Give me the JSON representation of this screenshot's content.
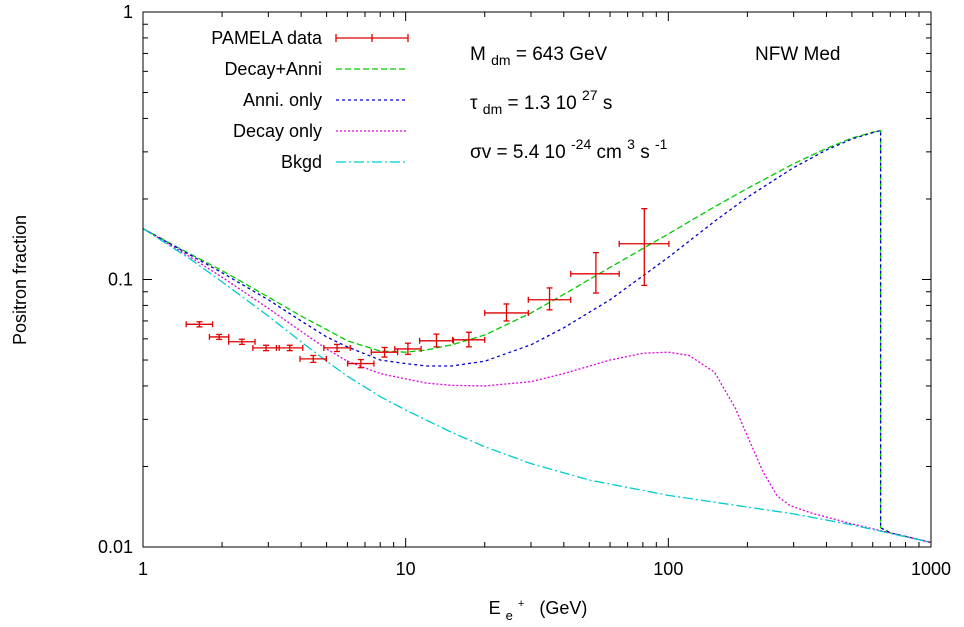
{
  "chart_data": {
    "type": "line",
    "title": "",
    "xlabel": {
      "main": "E",
      "sub": "e",
      "sup": "+",
      "unit": "(GeV)"
    },
    "ylabel": "Positron fraction",
    "xscale": "log",
    "yscale": "log",
    "xlim": [
      1,
      1000
    ],
    "ylim": [
      0.01,
      1
    ],
    "x_ticks": [
      {
        "value": 1,
        "label": "1"
      },
      {
        "value": 10,
        "label": "10"
      },
      {
        "value": 100,
        "label": "100"
      },
      {
        "value": 1000,
        "label": "1000"
      }
    ],
    "y_ticks": [
      {
        "value": 0.01,
        "label": "0.01"
      },
      {
        "value": 0.1,
        "label": "0.1"
      },
      {
        "value": 1,
        "label": "1"
      }
    ],
    "legend_position": "top-left",
    "annotations": {
      "mass": {
        "sym": "M",
        "sub": "dm",
        "val": " = 643 GeV"
      },
      "tau": {
        "sym": "τ",
        "sub": "dm",
        "val": " = 1.3 10",
        "exp": "27",
        "unit": " s"
      },
      "sigmav": {
        "sym": "σv = 5.4 10",
        "exp1": "-24",
        "mid": " cm",
        "exp2": "3",
        "mid2": " s",
        "exp3": "-1"
      },
      "profile": "NFW Med"
    },
    "series": [
      {
        "name": "PAMELA data",
        "kind": "errorbar",
        "color": "#e00000",
        "points": [
          {
            "x": 1.64,
            "xlo": 1.46,
            "xhi": 1.84,
            "y": 0.068,
            "ylo": 0.0665,
            "yhi": 0.0695
          },
          {
            "x": 1.95,
            "xlo": 1.79,
            "xhi": 2.12,
            "y": 0.061,
            "ylo": 0.0597,
            "yhi": 0.0623
          },
          {
            "x": 2.38,
            "xlo": 2.12,
            "xhi": 2.67,
            "y": 0.0585,
            "ylo": 0.0572,
            "yhi": 0.0598
          },
          {
            "x": 2.94,
            "xlo": 2.62,
            "xhi": 3.3,
            "y": 0.0555,
            "ylo": 0.0542,
            "yhi": 0.0568
          },
          {
            "x": 3.62,
            "xlo": 3.22,
            "xhi": 4.06,
            "y": 0.0555,
            "ylo": 0.0542,
            "yhi": 0.0568
          },
          {
            "x": 4.45,
            "xlo": 3.96,
            "xhi": 4.99,
            "y": 0.0505,
            "ylo": 0.049,
            "yhi": 0.052
          },
          {
            "x": 5.48,
            "xlo": 4.88,
            "xhi": 6.15,
            "y": 0.0555,
            "ylo": 0.0538,
            "yhi": 0.0572
          },
          {
            "x": 6.75,
            "xlo": 6.01,
            "xhi": 7.57,
            "y": 0.0485,
            "ylo": 0.0468,
            "yhi": 0.0502
          },
          {
            "x": 8.31,
            "xlo": 7.4,
            "xhi": 9.32,
            "y": 0.0535,
            "ylo": 0.0513,
            "yhi": 0.0557
          },
          {
            "x": 10.2,
            "xlo": 9.09,
            "xhi": 11.45,
            "y": 0.055,
            "ylo": 0.0525,
            "yhi": 0.0578
          },
          {
            "x": 13.1,
            "xlo": 11.3,
            "xhi": 15.2,
            "y": 0.059,
            "ylo": 0.056,
            "yhi": 0.0625
          },
          {
            "x": 17.4,
            "xlo": 15.1,
            "xhi": 20.0,
            "y": 0.0595,
            "ylo": 0.056,
            "yhi": 0.0635
          },
          {
            "x": 24.2,
            "xlo": 20.0,
            "xhi": 29.3,
            "y": 0.075,
            "ylo": 0.07,
            "yhi": 0.081
          },
          {
            "x": 35.3,
            "xlo": 29.3,
            "xhi": 42.5,
            "y": 0.084,
            "ylo": 0.077,
            "yhi": 0.093
          },
          {
            "x": 53.0,
            "xlo": 42.5,
            "xhi": 65.0,
            "y": 0.105,
            "ylo": 0.089,
            "yhi": 0.126
          },
          {
            "x": 81.0,
            "xlo": 65.0,
            "xhi": 100.5,
            "y": 0.136,
            "ylo": 0.095,
            "yhi": 0.184
          }
        ]
      },
      {
        "name": "Decay+Anni",
        "kind": "line",
        "color": "#00cc00",
        "dash": "6,3",
        "x": [
          1,
          1.5,
          2,
          3,
          4,
          5,
          6,
          8,
          10,
          12,
          15,
          20,
          30,
          40,
          60,
          100,
          150,
          200,
          300,
          400,
          500,
          600,
          640,
          643,
          643,
          700,
          1000
        ],
        "y": [
          0.155,
          0.125,
          0.108,
          0.086,
          0.073,
          0.065,
          0.059,
          0.054,
          0.0535,
          0.0545,
          0.057,
          0.062,
          0.075,
          0.088,
          0.111,
          0.148,
          0.187,
          0.219,
          0.271,
          0.309,
          0.338,
          0.355,
          0.36,
          0.36,
          0.0118,
          0.0113,
          0.0104
        ]
      },
      {
        "name": "Anni. only",
        "kind": "line",
        "color": "#0000cc",
        "dash": "3,3",
        "x": [
          1,
          1.5,
          2,
          3,
          4,
          5,
          6,
          8,
          10,
          12,
          15,
          20,
          30,
          40,
          60,
          100,
          150,
          200,
          300,
          400,
          500,
          600,
          640,
          643,
          643,
          700,
          1000
        ],
        "y": [
          0.155,
          0.124,
          0.106,
          0.084,
          0.07,
          0.061,
          0.056,
          0.05,
          0.0485,
          0.0475,
          0.0475,
          0.0495,
          0.057,
          0.066,
          0.084,
          0.121,
          0.165,
          0.203,
          0.262,
          0.305,
          0.335,
          0.354,
          0.36,
          0.36,
          0.0118,
          0.0113,
          0.0104
        ]
      },
      {
        "name": "Decay only",
        "kind": "line",
        "color": "#dd00dd",
        "dash": "2,2",
        "x": [
          1,
          1.5,
          2,
          3,
          4,
          5,
          6,
          8,
          10,
          12,
          15,
          20,
          30,
          40,
          60,
          80,
          100,
          120,
          150,
          180,
          200,
          230,
          260,
          290,
          350,
          500,
          1000
        ],
        "y": [
          0.155,
          0.122,
          0.102,
          0.078,
          0.064,
          0.055,
          0.0495,
          0.0445,
          0.0425,
          0.041,
          0.0402,
          0.04,
          0.0415,
          0.0445,
          0.05,
          0.053,
          0.0535,
          0.052,
          0.045,
          0.033,
          0.026,
          0.019,
          0.0155,
          0.0143,
          0.0134,
          0.0122,
          0.0104
        ]
      },
      {
        "name": "Bkgd",
        "kind": "line",
        "color": "#00cccc",
        "dash": "10,3,2,3",
        "x": [
          1,
          1.5,
          2,
          3,
          4,
          5,
          6,
          8,
          10,
          15,
          20,
          30,
          50,
          100,
          200,
          300,
          500,
          1000
        ],
        "y": [
          0.155,
          0.12,
          0.098,
          0.073,
          0.0585,
          0.0495,
          0.0435,
          0.0365,
          0.0325,
          0.0268,
          0.0237,
          0.0205,
          0.0178,
          0.0156,
          0.0141,
          0.0133,
          0.0121,
          0.0104
        ]
      }
    ]
  }
}
